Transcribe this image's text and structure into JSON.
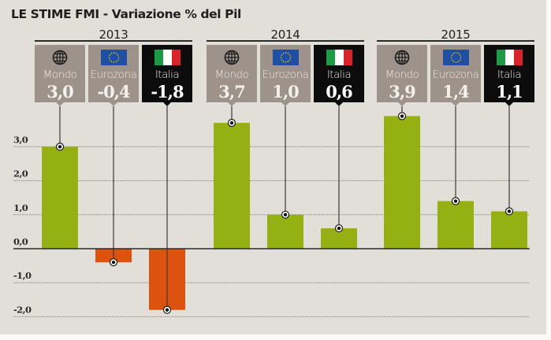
{
  "chart_data": {
    "type": "bar",
    "title": "LE STIME FMI - Variazione % del Pil",
    "xlabel": "",
    "ylabel": "",
    "ylim": [
      -2.0,
      3.0
    ],
    "yticks": [
      "3,0",
      "2,0",
      "1,0",
      "0,0",
      "-1,0",
      "-2,0"
    ],
    "ytick_values": [
      3,
      2,
      1,
      0,
      -1,
      -2
    ],
    "grid": true,
    "groups": [
      {
        "year": "2013",
        "bars": [
          {
            "label": "Mondo",
            "icon": "globe-icon",
            "value": 3.0,
            "display": "3,0",
            "color": "#95b012"
          },
          {
            "label": "Eurozona",
            "icon": "eu-flag-icon",
            "value": -0.4,
            "display": "-0,4",
            "color": "#dd520f"
          },
          {
            "label": "Italia",
            "icon": "italy-flag-icon",
            "value": -1.8,
            "display": "-1,8",
            "color": "#dd520f"
          }
        ]
      },
      {
        "year": "2014",
        "bars": [
          {
            "label": "Mondo",
            "icon": "globe-icon",
            "value": 3.7,
            "display": "3,7",
            "color": "#95b012"
          },
          {
            "label": "Eurozona",
            "icon": "eu-flag-icon",
            "value": 1.0,
            "display": "1,0",
            "color": "#95b012"
          },
          {
            "label": "Italia",
            "icon": "italy-flag-icon",
            "value": 0.6,
            "display": "0,6",
            "color": "#95b012"
          }
        ]
      },
      {
        "year": "2015",
        "bars": [
          {
            "label": "Mondo",
            "icon": "globe-icon",
            "value": 3.9,
            "display": "3,9",
            "color": "#95b012"
          },
          {
            "label": "Eurozona",
            "icon": "eu-flag-icon",
            "value": 1.4,
            "display": "1,4",
            "color": "#95b012"
          },
          {
            "label": "Italia",
            "icon": "italy-flag-icon",
            "value": 1.1,
            "display": "1,1",
            "color": "#95b012"
          }
        ]
      }
    ],
    "colors": {
      "positive": "#95b012",
      "negative": "#dd520f",
      "card_gray": "#9d938b",
      "card_black": "#0c0c0c"
    }
  }
}
